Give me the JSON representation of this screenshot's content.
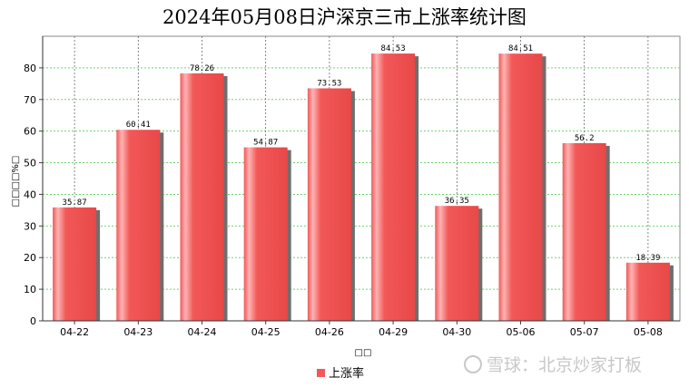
{
  "chart_data": {
    "type": "bar",
    "title": "2024年05月08日沪深京三市上涨率统计图",
    "xlabel": "□□",
    "ylabel": "□□□□%□",
    "categories": [
      "04-22",
      "04-23",
      "04-24",
      "04-25",
      "04-26",
      "04-29",
      "04-30",
      "05-06",
      "05-07",
      "05-08"
    ],
    "series": [
      {
        "name": "上涨率",
        "values": [
          35.87,
          60.41,
          78.26,
          54.87,
          73.53,
          84.53,
          36.35,
          84.51,
          56.2,
          18.39
        ],
        "labels": [
          "35.87",
          "60.41",
          "78.26",
          "54.87",
          "73.53",
          "84.53",
          "36.35",
          "84.51",
          "56.2",
          "18.39"
        ]
      }
    ],
    "ylim": [
      0,
      90
    ],
    "yticks": [
      0,
      10,
      20,
      30,
      40,
      50,
      60,
      70,
      80
    ],
    "grid": true,
    "legend_position": "bottom-center",
    "colors": {
      "bar": "#f25858",
      "bar_highlight": "#ffb3b3",
      "grid": "#6ad66a"
    }
  },
  "watermark": "雪球：北京炒家打板"
}
